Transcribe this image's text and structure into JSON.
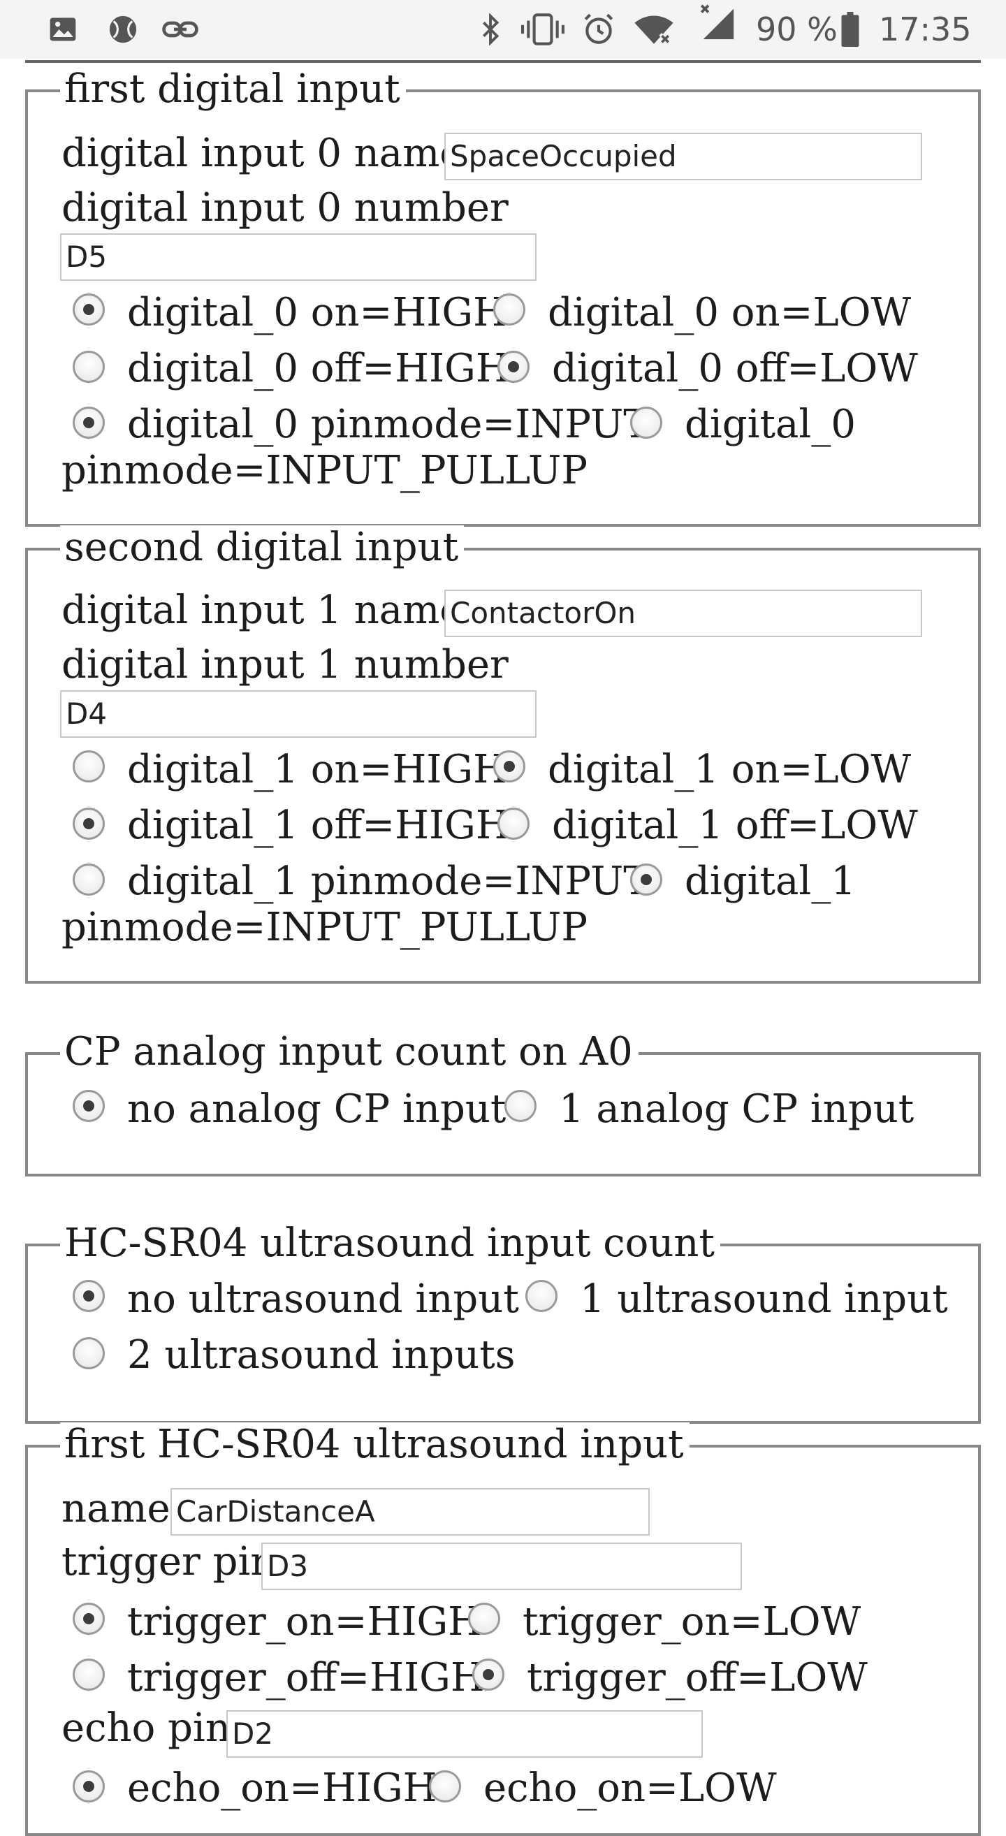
{
  "status_bar": {
    "icons": [
      "image-icon",
      "tennis-ball-icon",
      "link-icon",
      "bluetooth-icon",
      "vibrate-icon",
      "alarm-icon",
      "wifi-icon",
      "cellular-signal-icon",
      "battery-icon"
    ],
    "battery": "90 %",
    "time": "17:35"
  },
  "first_digital_input": {
    "legend": "first digital input",
    "name_label": "digital input 0 name",
    "name_value": "SpaceOccupied",
    "number_label": "digital input 0 number",
    "number_value": "D5",
    "on_high": "digital_0 on=HIGH",
    "on_low": "digital_0 on=LOW",
    "off_high": "digital_0 off=HIGH",
    "off_low": "digital_0 off=LOW",
    "pinmode_input": "digital_0 pinmode=INPUT",
    "pinmode_pullup_a": "digital_0",
    "pinmode_pullup_b": "pinmode=INPUT_PULLUP"
  },
  "second_digital_input": {
    "legend": "second digital input",
    "name_label": "digital input 1 name",
    "name_value": "ContactorOn",
    "number_label": "digital input 1 number",
    "number_value": "D4",
    "on_high": "digital_1 on=HIGH",
    "on_low": "digital_1 on=LOW",
    "off_high": "digital_1 off=HIGH",
    "off_low": "digital_1 off=LOW",
    "pinmode_input": "digital_1 pinmode=INPUT",
    "pinmode_pullup_a": "digital_1",
    "pinmode_pullup_b": "pinmode=INPUT_PULLUP"
  },
  "cp_analog": {
    "legend": "CP analog input count on A0",
    "none": "no analog CP input",
    "one": "1 analog CP input"
  },
  "ultrasound_count": {
    "legend": "HC-SR04 ultrasound input count",
    "none": "no ultrasound input",
    "one": "1 ultrasound input",
    "two": "2 ultrasound inputs"
  },
  "first_ultrasound": {
    "legend": "first HC-SR04 ultrasound input",
    "name_label": "name",
    "name_value": "CarDistanceA",
    "trigger_label": "trigger pin",
    "trigger_value": "D3",
    "trigger_on_high": "trigger_on=HIGH",
    "trigger_on_low": "trigger_on=LOW",
    "trigger_off_high": "trigger_off=HIGH",
    "trigger_off_low": "trigger_off=LOW",
    "echo_label": "echo pin",
    "echo_value": "D2",
    "echo_on_high": "echo_on=HIGH",
    "echo_on_low": "echo_on=LOW"
  }
}
